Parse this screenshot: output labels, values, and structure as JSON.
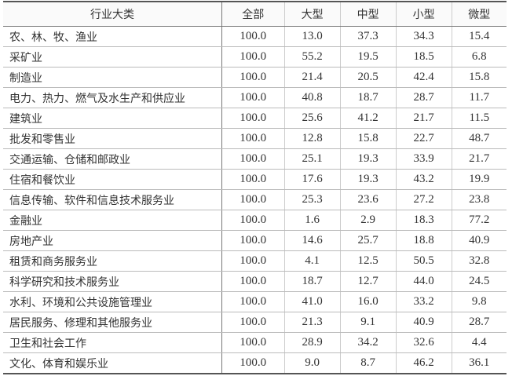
{
  "table": {
    "headers": [
      "行业大类",
      "全部",
      "大型",
      "中型",
      "小型",
      "微型"
    ],
    "rows": [
      [
        "农、林、牧、渔业",
        "100.0",
        "13.0",
        "37.3",
        "34.3",
        "15.4"
      ],
      [
        "采矿业",
        "100.0",
        "55.2",
        "19.5",
        "18.5",
        "6.8"
      ],
      [
        "制造业",
        "100.0",
        "21.4",
        "20.5",
        "42.4",
        "15.8"
      ],
      [
        "电力、热力、燃气及水生产和供应业",
        "100.0",
        "40.8",
        "18.7",
        "28.7",
        "11.7"
      ],
      [
        "建筑业",
        "100.0",
        "25.6",
        "41.2",
        "21.7",
        "11.5"
      ],
      [
        "批发和零售业",
        "100.0",
        "12.8",
        "15.8",
        "22.7",
        "48.7"
      ],
      [
        "交通运输、仓储和邮政业",
        "100.0",
        "25.1",
        "19.3",
        "33.9",
        "21.7"
      ],
      [
        "住宿和餐饮业",
        "100.0",
        "17.6",
        "19.3",
        "43.2",
        "19.9"
      ],
      [
        "信息传输、软件和信息技术服务业",
        "100.0",
        "25.3",
        "23.6",
        "27.2",
        "23.8"
      ],
      [
        "金融业",
        "100.0",
        "1.6",
        "2.9",
        "18.3",
        "77.2"
      ],
      [
        "房地产业",
        "100.0",
        "14.6",
        "25.7",
        "18.8",
        "40.9"
      ],
      [
        "租赁和商务服务业",
        "100.0",
        "4.1",
        "12.5",
        "50.5",
        "32.8"
      ],
      [
        "科学研究和技术服务业",
        "100.0",
        "18.7",
        "12.7",
        "44.0",
        "24.5"
      ],
      [
        "水利、环境和公共设施管理业",
        "100.0",
        "41.0",
        "16.0",
        "33.2",
        "9.8"
      ],
      [
        "居民服务、修理和其他服务业",
        "100.0",
        "21.3",
        "9.1",
        "40.9",
        "28.7"
      ],
      [
        "卫生和社会工作",
        "100.0",
        "28.9",
        "34.2",
        "32.6",
        "4.4"
      ],
      [
        "文化、体育和娱乐业",
        "100.0",
        "9.0",
        "8.7",
        "46.2",
        "36.1"
      ]
    ]
  }
}
